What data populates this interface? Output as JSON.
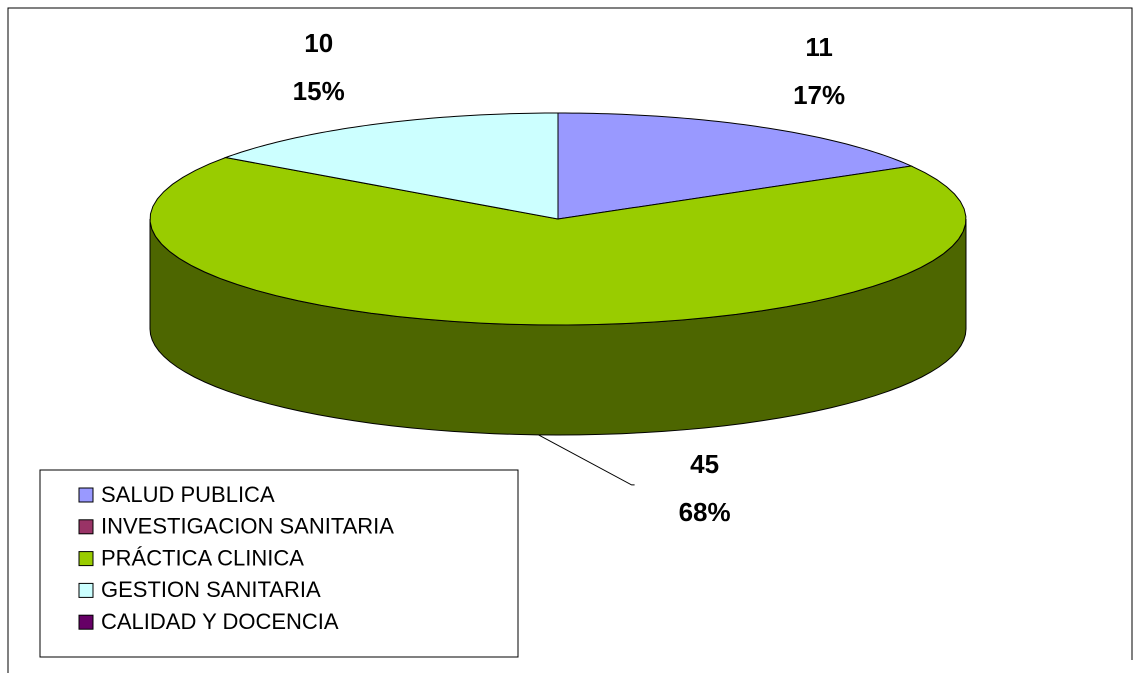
{
  "chart_data": {
    "type": "pie3d",
    "categories": [
      "SALUD PUBLICA",
      "INVESTIGACION SANITARIA",
      "PRÁCTICA CLINICA",
      "GESTION SANITARIA",
      "CALIDAD Y DOCENCIA"
    ],
    "values": [
      11,
      0,
      45,
      10,
      0
    ],
    "percent_labels": [
      "17%",
      null,
      "68%",
      "15%",
      null
    ],
    "colors": [
      "#9999ff",
      "#993366",
      "#99cc00",
      "#ccffff",
      "#660066"
    ],
    "legend": "bottom-left"
  }
}
